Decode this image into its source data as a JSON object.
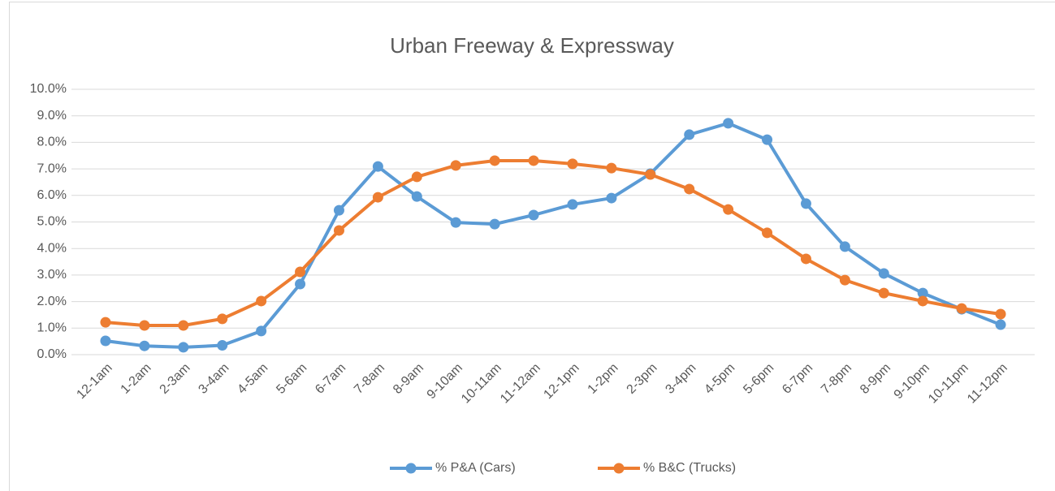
{
  "chart_data": {
    "type": "line",
    "title": "Urban Freeway & Expressway",
    "categories": [
      "12-1am",
      "1-2am",
      "2-3am",
      "3-4am",
      "4-5am",
      "5-6am",
      "6-7am",
      "7-8am",
      "8-9am",
      "9-10am",
      "10-11am",
      "11-12am",
      "12-1pm",
      "1-2pm",
      "2-3pm",
      "3-4pm",
      "4-5pm",
      "5-6pm",
      "6-7pm",
      "7-8pm",
      "8-9pm",
      "9-10pm",
      "10-11pm",
      "11-12pm"
    ],
    "series": [
      {
        "name": "% P&A (Cars)",
        "color": "#5b9bd5",
        "values": [
          0.52,
          0.33,
          0.28,
          0.35,
          0.89,
          2.66,
          5.44,
          7.09,
          5.96,
          4.98,
          4.92,
          5.26,
          5.66,
          5.9,
          6.82,
          8.29,
          8.72,
          8.1,
          5.69,
          4.07,
          3.06,
          2.32,
          1.71,
          1.13
        ]
      },
      {
        "name": "% B&C (Trucks)",
        "color": "#ed7d31",
        "values": [
          1.22,
          1.1,
          1.1,
          1.35,
          2.02,
          3.12,
          4.68,
          5.93,
          6.7,
          7.13,
          7.31,
          7.31,
          7.19,
          7.03,
          6.79,
          6.24,
          5.47,
          4.59,
          3.61,
          2.81,
          2.32,
          2.02,
          1.74,
          1.53
        ]
      }
    ],
    "ylim": [
      0,
      10
    ],
    "yticks": [
      {
        "value": 0,
        "label": "0.0%"
      },
      {
        "value": 1,
        "label": "1.0%"
      },
      {
        "value": 2,
        "label": "2.0%"
      },
      {
        "value": 3,
        "label": "3.0%"
      },
      {
        "value": 4,
        "label": "4.0%"
      },
      {
        "value": 5,
        "label": "5.0%"
      },
      {
        "value": 6,
        "label": "6.0%"
      },
      {
        "value": 7,
        "label": "7.0%"
      },
      {
        "value": 8,
        "label": "8.0%"
      },
      {
        "value": 9,
        "label": "9.0%"
      },
      {
        "value": 10,
        "label": "10.0%"
      }
    ],
    "grid": true,
    "legend": "bottom"
  }
}
